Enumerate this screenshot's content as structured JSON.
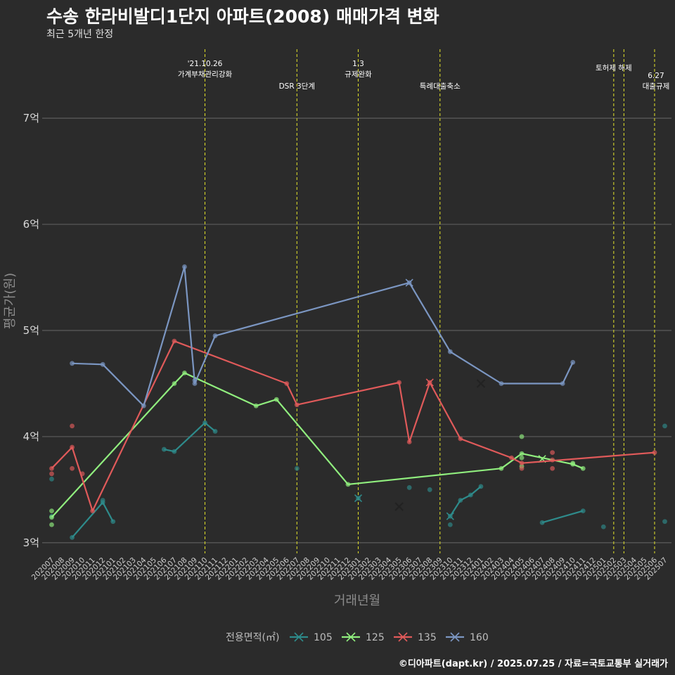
{
  "title": "수송 한라비발디1단지 아파트(2008) 매매가격 변화",
  "subtitle": "최근 5개년 한정",
  "caption": "©디아파트(dapt.kr) / 2025.07.25 / 자료=국토교통부 실거래가",
  "chart_data": {
    "type": "line",
    "xlabel": "거래년월",
    "ylabel": "평균가(원)",
    "x_ticks": [
      "202007",
      "202008",
      "202009",
      "202010",
      "202011",
      "202012",
      "202101",
      "202102",
      "202103",
      "202104",
      "202105",
      "202106",
      "202107",
      "202108",
      "202109",
      "202110",
      "202111",
      "202112",
      "202201",
      "202202",
      "202203",
      "202204",
      "202205",
      "202206",
      "202207",
      "202208",
      "202209",
      "202210",
      "202211",
      "202212",
      "202301",
      "202302",
      "202303",
      "202304",
      "202305",
      "202306",
      "202307",
      "202308",
      "202309",
      "202310",
      "202311",
      "202312",
      "202401",
      "202402",
      "202403",
      "202404",
      "202405",
      "202406",
      "202407",
      "202408",
      "202409",
      "202410",
      "202411",
      "202412",
      "202501",
      "202502",
      "202503",
      "202504",
      "202505",
      "202506",
      "202507"
    ],
    "y_ticks": [
      {
        "value": 3,
        "label": "3억"
      },
      {
        "value": 4,
        "label": "4억"
      },
      {
        "value": 5,
        "label": "5억"
      },
      {
        "value": 6,
        "label": "6억"
      },
      {
        "value": 7,
        "label": "7억"
      }
    ],
    "ylim": [
      2.9,
      7.65
    ],
    "legend_title": "전용면적(㎡)",
    "events": [
      {
        "month": "202110",
        "lines": [
          "'21.10.26",
          "가계부채관리강화"
        ],
        "row": 0
      },
      {
        "month": "202207",
        "lines": [
          "DSR 3단계"
        ],
        "row": 1
      },
      {
        "month": "202301",
        "lines": [
          "1.3",
          "규제완화"
        ],
        "row": 0
      },
      {
        "month": "202309",
        "lines": [
          "특례대출축소"
        ],
        "row": 1
      },
      {
        "month": "202502",
        "lines": [
          "토허제 해제"
        ],
        "row": 0
      },
      {
        "month": "202503",
        "lines": [],
        "row": 0
      },
      {
        "month": "202506",
        "lines": [
          "6.27",
          "대출규제"
        ],
        "row": 1
      }
    ],
    "series": [
      {
        "name": "105",
        "color": "#2e8b8b",
        "line_segments": [
          [
            [
              "202009",
              3.05
            ],
            [
              "202012",
              3.38
            ],
            [
              "202101",
              3.2
            ]
          ],
          [
            [
              "202106",
              3.88
            ],
            [
              "202107",
              3.86
            ],
            [
              "202110",
              4.13
            ],
            [
              "202111",
              4.05
            ]
          ],
          [
            [
              "202310",
              3.25
            ],
            [
              "202311",
              3.4
            ],
            [
              "202312",
              3.45
            ],
            [
              "202401",
              3.53
            ]
          ],
          [
            [
              "202407",
              3.19
            ],
            [
              "202411",
              3.3
            ]
          ]
        ],
        "points": [
          [
            "202007",
            3.6
          ],
          [
            "202007",
            3.25
          ],
          [
            "202012",
            3.4
          ],
          [
            "202207",
            3.7
          ],
          [
            "202301",
            3.42
          ],
          [
            "202306",
            3.52
          ],
          [
            "202308",
            3.5
          ],
          [
            "202310",
            3.17
          ],
          [
            "202501",
            3.15
          ],
          [
            "202507",
            4.1
          ],
          [
            "202507",
            3.2
          ]
        ],
        "x_marks": [
          [
            "202301",
            3.42
          ],
          [
            "202310",
            3.25
          ]
        ]
      },
      {
        "name": "125",
        "color": "#90ee7e",
        "line_segments": [
          [
            [
              "202007",
              3.24
            ],
            [
              "202107",
              4.5
            ],
            [
              "202108",
              4.6
            ],
            [
              "202203",
              4.29
            ],
            [
              "202205",
              4.35
            ],
            [
              "202212",
              3.55
            ],
            [
              "202403",
              3.7
            ],
            [
              "202405",
              3.84
            ],
            [
              "202410",
              3.74
            ],
            [
              "202411",
              3.7
            ]
          ]
        ],
        "points": [
          [
            "202007",
            3.3
          ],
          [
            "202007",
            3.17
          ],
          [
            "202405",
            3.72
          ],
          [
            "202405",
            4.0
          ],
          [
            "202405",
            3.8
          ],
          [
            "202410",
            3.75
          ]
        ],
        "x_marks": [
          [
            "202407",
            3.79
          ]
        ]
      },
      {
        "name": "135",
        "color": "#e05a5a",
        "line_segments": [
          [
            [
              "202007",
              3.7
            ],
            [
              "202009",
              3.9
            ],
            [
              "202011",
              3.3
            ],
            [
              "202107",
              4.9
            ],
            [
              "202206",
              4.5
            ],
            [
              "202207",
              4.3
            ],
            [
              "202305",
              4.51
            ],
            [
              "202306",
              3.95
            ],
            [
              "202308",
              4.51
            ],
            [
              "202311",
              3.98
            ],
            [
              "202404",
              3.8
            ],
            [
              "202405",
              3.75
            ],
            [
              "202506",
              3.85
            ]
          ]
        ],
        "points": [
          [
            "202007",
            3.65
          ],
          [
            "202009",
            4.1
          ],
          [
            "202009",
            3.7
          ],
          [
            "202010",
            3.65
          ],
          [
            "202405",
            3.7
          ],
          [
            "202408",
            3.85
          ],
          [
            "202408",
            3.7
          ],
          [
            "202408",
            3.78
          ]
        ],
        "x_marks": [
          [
            "202308",
            4.51
          ]
        ]
      },
      {
        "name": "160",
        "color": "#7b96c2",
        "line_segments": [
          [
            [
              "202009",
              4.69
            ],
            [
              "202012",
              4.68
            ],
            [
              "202104",
              4.29
            ],
            [
              "202108",
              5.6
            ],
            [
              "202109",
              4.5
            ],
            [
              "202111",
              4.95
            ],
            [
              "202306",
              5.45
            ],
            [
              "202310",
              4.8
            ],
            [
              "202403",
              4.5
            ],
            [
              "202409",
              4.5
            ],
            [
              "202410",
              4.7
            ]
          ]
        ],
        "points": [
          [
            "202109",
            4.53
          ]
        ],
        "x_marks": [
          [
            "202306",
            5.45
          ]
        ]
      }
    ],
    "extra_marks": [
      {
        "x": "202305",
        "y": 3.34,
        "color": "#222222"
      },
      {
        "x": "202401",
        "y": 4.5,
        "color": "#222222"
      }
    ]
  }
}
